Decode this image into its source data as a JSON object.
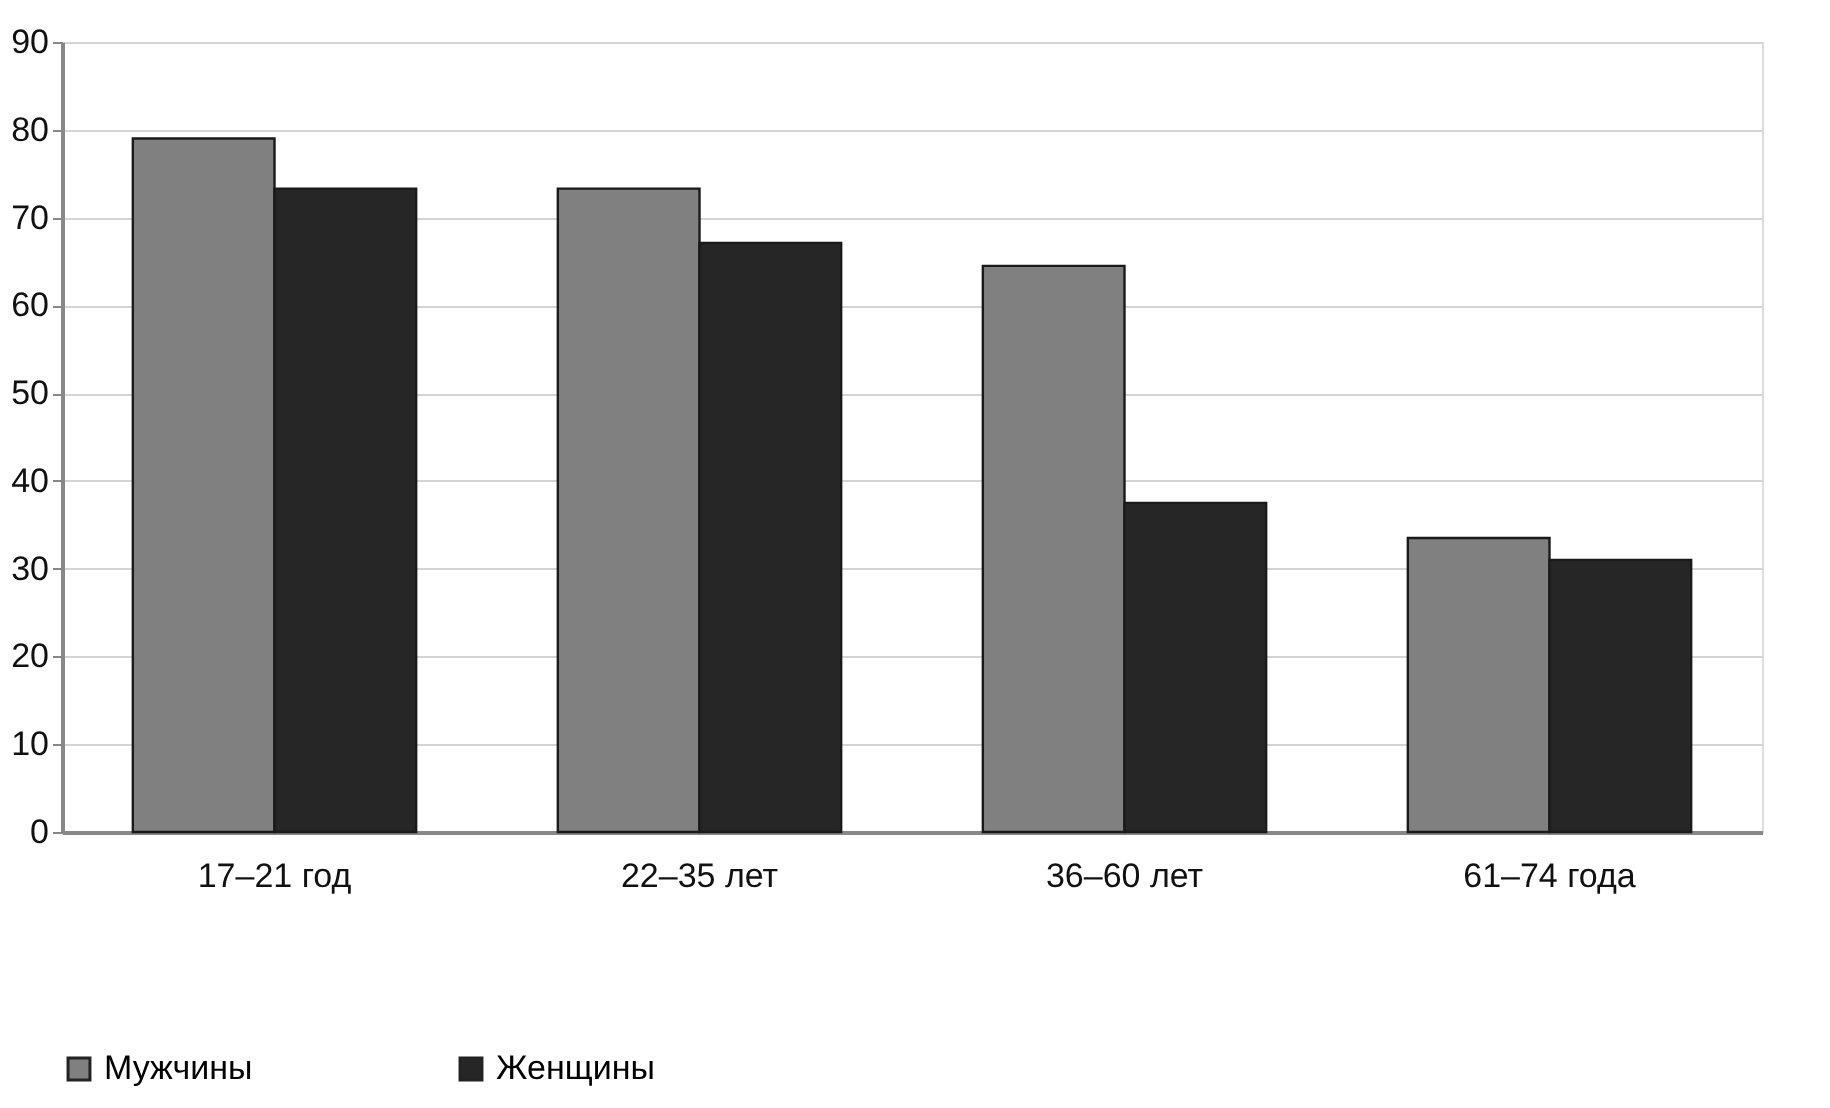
{
  "chart_data": {
    "type": "bar",
    "categories": [
      "17–21 год",
      "22–35 лет",
      "36–60 лет",
      "61–74 года"
    ],
    "series": [
      {
        "name": "Мужчины",
        "color": "#808080",
        "values": [
          79.0,
          73.3,
          64.5,
          33.5
        ]
      },
      {
        "name": "Женщины",
        "color": "#262626",
        "values": [
          73.3,
          67.1,
          37.5,
          31.0
        ]
      }
    ],
    "ylim": [
      0,
      90
    ],
    "yticks": [
      0,
      10,
      20,
      30,
      40,
      50,
      60,
      70,
      80,
      90
    ],
    "grid": "y",
    "legend": "bottom"
  }
}
